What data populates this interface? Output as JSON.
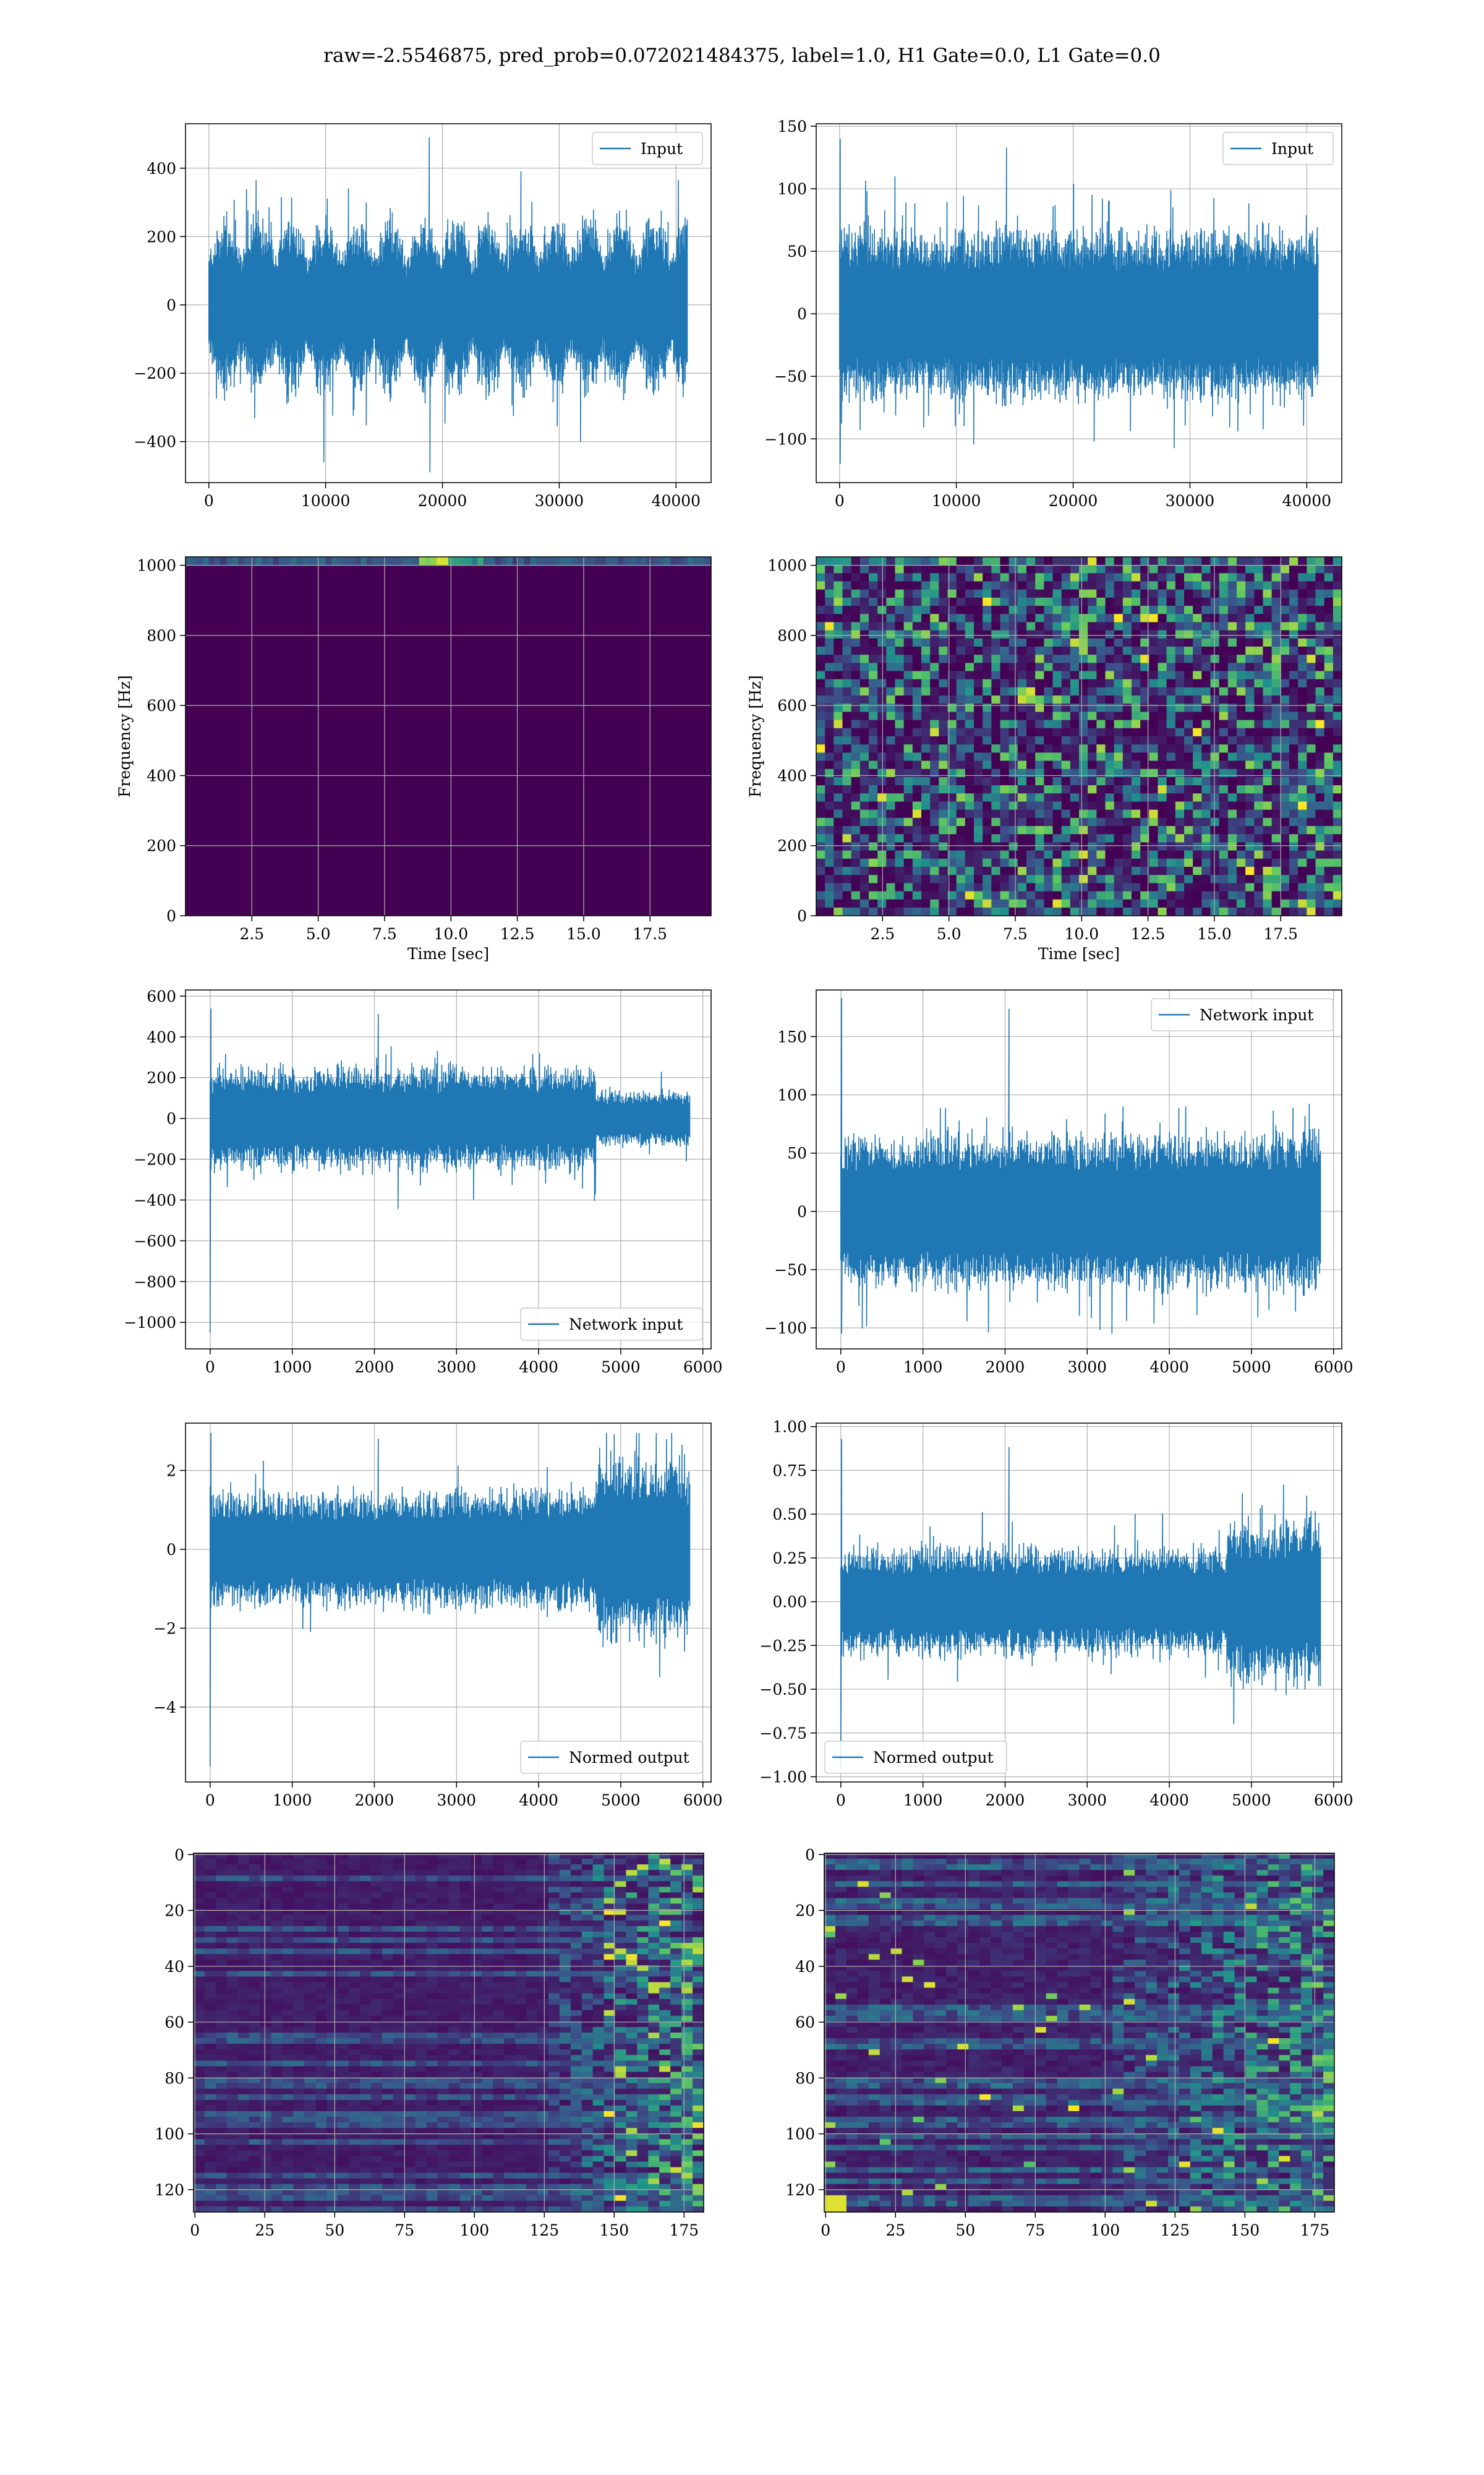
{
  "figure": {
    "suptitle": "raw=-2.5546875, pred_prob=0.072021484375, label=1.0, H1 Gate=0.0, L1 Gate=0.0"
  },
  "colors": {
    "line": "#1f77b4",
    "grid": "#b0b0b0",
    "viridis_dark": "#440154",
    "viridis_blue": "#3b528b",
    "viridis_teal": "#21918c",
    "viridis_green": "#5ec962",
    "viridis_yellow": "#fde725"
  },
  "chart_data": [
    {
      "id": "p1",
      "type": "line",
      "xlim": [
        -2000,
        43000
      ],
      "ylim": [
        -520,
        530
      ],
      "xticks": [
        0,
        10000,
        20000,
        30000,
        40000
      ],
      "yticks": [
        -400,
        -200,
        0,
        200,
        400
      ],
      "xticklabels": [
        "0",
        "10000",
        "20000",
        "30000",
        "40000"
      ],
      "yticklabels": [
        "−400",
        "−200",
        "0",
        "200",
        "400"
      ],
      "xlabel": "",
      "ylabel": "",
      "grid": true,
      "legend": "upper right",
      "series": [
        {
          "name": "Input",
          "x_range": [
            0,
            40960
          ],
          "n": 700,
          "amplitude": 240,
          "envelope": "bursty",
          "spike_max": 490,
          "spike_min": -490
        }
      ]
    },
    {
      "id": "p2",
      "type": "line",
      "xlim": [
        -2000,
        43000
      ],
      "ylim": [
        -135,
        152
      ],
      "xticks": [
        0,
        10000,
        20000,
        30000,
        40000
      ],
      "yticks": [
        -100,
        -50,
        0,
        50,
        100,
        150
      ],
      "xticklabels": [
        "0",
        "10000",
        "20000",
        "30000",
        "40000"
      ],
      "yticklabels": [
        "−100",
        "−50",
        "0",
        "50",
        "100",
        "150"
      ],
      "xlabel": "",
      "ylabel": "",
      "grid": true,
      "legend": "upper right",
      "series": [
        {
          "name": "Input",
          "x_range": [
            0,
            40960
          ],
          "n": 700,
          "amplitude": 60,
          "envelope": "flat",
          "spike_max": 140,
          "spike_min": -120
        }
      ]
    },
    {
      "id": "p3",
      "type": "heatmap",
      "xlim": [
        0,
        19.8
      ],
      "ylim": [
        0,
        1024
      ],
      "xticks": [
        2.5,
        5.0,
        7.5,
        10.0,
        12.5,
        15.0,
        17.5
      ],
      "yticks": [
        0,
        200,
        400,
        600,
        800,
        1000
      ],
      "xticklabels": [
        "2.5",
        "5.0",
        "7.5",
        "10.0",
        "12.5",
        "15.0",
        "17.5"
      ],
      "yticklabels": [
        "0",
        "200",
        "400",
        "600",
        "800",
        "1000"
      ],
      "xlabel": "Time [sec]",
      "ylabel": "Frequency [Hz]",
      "grid": true,
      "pattern": "dark_with_top_band"
    },
    {
      "id": "p4",
      "type": "heatmap",
      "xlim": [
        0,
        19.8
      ],
      "ylim": [
        0,
        1024
      ],
      "xticks": [
        2.5,
        5.0,
        7.5,
        10.0,
        12.5,
        15.0,
        17.5
      ],
      "yticks": [
        0,
        200,
        400,
        600,
        800,
        1000
      ],
      "xticklabels": [
        "2.5",
        "5.0",
        "7.5",
        "10.0",
        "12.5",
        "15.0",
        "17.5"
      ],
      "yticklabels": [
        "0",
        "200",
        "400",
        "600",
        "800",
        "1000"
      ],
      "xlabel": "Time [sec]",
      "ylabel": "Frequency [Hz]",
      "grid": true,
      "pattern": "noise"
    },
    {
      "id": "p5",
      "type": "line",
      "xlim": [
        -300,
        6100
      ],
      "ylim": [
        -1130,
        630
      ],
      "xticks": [
        0,
        1000,
        2000,
        3000,
        4000,
        5000,
        6000
      ],
      "yticks": [
        -1000,
        -800,
        -600,
        -400,
        -200,
        0,
        200,
        400,
        600
      ],
      "xticklabels": [
        "0",
        "1000",
        "2000",
        "3000",
        "4000",
        "5000",
        "6000"
      ],
      "yticklabels": [
        "−1000",
        "−800",
        "−600",
        "−400",
        "−200",
        "0",
        "200",
        "400",
        "600"
      ],
      "xlabel": "",
      "ylabel": "",
      "grid": true,
      "legend": "lower right",
      "series": [
        {
          "name": "Network input",
          "x_range": [
            0,
            5840
          ],
          "n": 560,
          "amplitude": 230,
          "envelope": "drop_at_4700",
          "spike_max": 540,
          "spike_min": -1050
        }
      ]
    },
    {
      "id": "p6",
      "type": "line",
      "xlim": [
        -300,
        6100
      ],
      "ylim": [
        -118,
        190
      ],
      "xticks": [
        0,
        1000,
        2000,
        3000,
        4000,
        5000,
        6000
      ],
      "yticks": [
        -100,
        -50,
        0,
        50,
        100,
        150
      ],
      "xticklabels": [
        "0",
        "1000",
        "2000",
        "3000",
        "4000",
        "5000",
        "6000"
      ],
      "yticklabels": [
        "−100",
        "−50",
        "0",
        "50",
        "100",
        "150"
      ],
      "xlabel": "",
      "ylabel": "",
      "grid": true,
      "legend": "upper right",
      "series": [
        {
          "name": "Network input",
          "x_range": [
            0,
            5840
          ],
          "n": 560,
          "amplitude": 60,
          "envelope": "flat",
          "spike_max": 183,
          "spike_min": -105
        }
      ]
    },
    {
      "id": "p7",
      "type": "line",
      "xlim": [
        -300,
        6100
      ],
      "ylim": [
        -5.9,
        3.2
      ],
      "xticks": [
        0,
        1000,
        2000,
        3000,
        4000,
        5000,
        6000
      ],
      "yticks": [
        -4,
        -2,
        0,
        2
      ],
      "xticklabels": [
        "0",
        "1000",
        "2000",
        "3000",
        "4000",
        "5000",
        "6000"
      ],
      "yticklabels": [
        "−4",
        "−2",
        "0",
        "2"
      ],
      "xlabel": "",
      "ylabel": "",
      "grid": true,
      "legend": "lower right",
      "series": [
        {
          "name": "Normed output",
          "x_range": [
            0,
            5840
          ],
          "n": 560,
          "amplitude": 1.35,
          "envelope": "rise_at_4700",
          "spike_max": 2.95,
          "spike_min": -5.5
        }
      ]
    },
    {
      "id": "p8",
      "type": "line",
      "xlim": [
        -300,
        6100
      ],
      "ylim": [
        -1.03,
        1.02
      ],
      "xticks": [
        0,
        1000,
        2000,
        3000,
        4000,
        5000,
        6000
      ],
      "yticks": [
        -1.0,
        -0.75,
        -0.5,
        -0.25,
        0.0,
        0.25,
        0.5,
        0.75,
        1.0
      ],
      "xticklabels": [
        "0",
        "1000",
        "2000",
        "3000",
        "4000",
        "5000",
        "6000"
      ],
      "yticklabels": [
        "−1.00",
        "−0.75",
        "−0.50",
        "−0.25",
        "0.00",
        "0.25",
        "0.50",
        "0.75",
        "1.00"
      ],
      "xlabel": "",
      "ylabel": "",
      "grid": true,
      "legend": "lower left",
      "series": [
        {
          "name": "Normed output",
          "x_range": [
            0,
            5840
          ],
          "n": 560,
          "amplitude": 0.28,
          "envelope": "rise_at_4700",
          "spike_max": 0.93,
          "spike_min": -0.95
        }
      ]
    },
    {
      "id": "p9",
      "type": "heatmap",
      "xlim": [
        -0.5,
        182
      ],
      "ylim": [
        128,
        -0.5
      ],
      "xticks": [
        0,
        25,
        50,
        75,
        100,
        125,
        150,
        175
      ],
      "yticks": [
        0,
        20,
        40,
        60,
        80,
        100,
        120
      ],
      "xticklabels": [
        "0",
        "25",
        "50",
        "75",
        "100",
        "125",
        "150",
        "175"
      ],
      "yticklabels": [
        "0",
        "20",
        "40",
        "60",
        "80",
        "100",
        "120"
      ],
      "xlabel": "",
      "ylabel": "",
      "grid": true,
      "pattern": "features_right_heavy"
    },
    {
      "id": "p10",
      "type": "heatmap",
      "xlim": [
        -0.5,
        182
      ],
      "ylim": [
        128,
        -0.5
      ],
      "xticks": [
        0,
        25,
        50,
        75,
        100,
        125,
        150,
        175
      ],
      "yticks": [
        0,
        20,
        40,
        60,
        80,
        100,
        120
      ],
      "xticklabels": [
        "0",
        "25",
        "50",
        "75",
        "100",
        "125",
        "150",
        "175"
      ],
      "yticklabels": [
        "0",
        "20",
        "40",
        "60",
        "80",
        "100",
        "120"
      ],
      "xlabel": "",
      "ylabel": "",
      "grid": true,
      "pattern": "features_mixed"
    }
  ]
}
